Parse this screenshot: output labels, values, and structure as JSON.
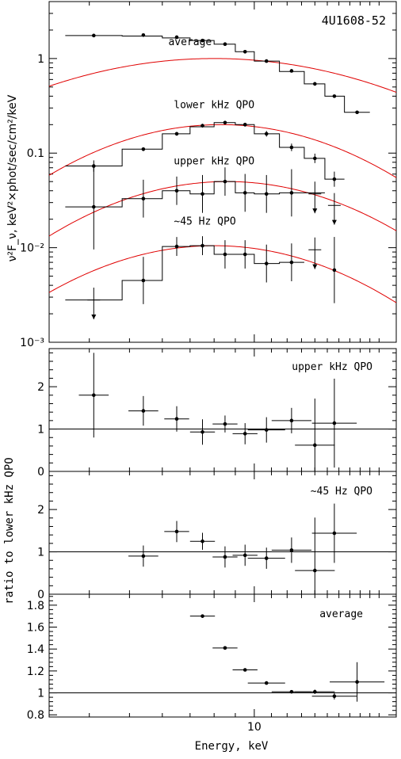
{
  "chart_data": [
    {
      "type": "scatter",
      "panel": "spectrum",
      "title": "4U1608-52",
      "ylabel": "ν²F_ν, keV²×phot/sec/cm²/keV",
      "yscale": "log",
      "xscale": "log",
      "xlim": [
        3.2,
        22
      ],
      "ylim": [
        0.001,
        4
      ],
      "ytick_labels": [
        {
          "v": 1,
          "label": "1"
        },
        {
          "v": 0.1,
          "label": "0.1"
        },
        {
          "v": 0.01,
          "label": "10⁻²"
        },
        {
          "v": 0.001,
          "label": "10⁻³"
        }
      ],
      "series": [
        {
          "name": "average",
          "label_at": [
            7.0,
            1.38
          ],
          "bins": [
            [
              3.5,
              4.8,
              1.75
            ],
            [
              4.8,
              6.0,
              1.73
            ],
            [
              6.0,
              7.0,
              1.65
            ],
            [
              7.0,
              8.0,
              1.55
            ],
            [
              8.0,
              9.0,
              1.42
            ],
            [
              9.0,
              10.0,
              1.18
            ],
            [
              10.0,
              11.5,
              0.94
            ],
            [
              11.5,
              13.2,
              0.73
            ],
            [
              13.2,
              14.8,
              0.54
            ],
            [
              14.8,
              16.5,
              0.4
            ],
            [
              16.5,
              19.0,
              0.27
            ]
          ],
          "points": [
            [
              4.1,
              1.75,
              0,
              false
            ],
            [
              5.4,
              1.77,
              0,
              false
            ],
            [
              6.5,
              1.68,
              0,
              false
            ],
            [
              7.5,
              1.55,
              0,
              false
            ],
            [
              8.5,
              1.42,
              0,
              false
            ],
            [
              9.5,
              1.18,
              0,
              false
            ],
            [
              10.7,
              0.94,
              0,
              false
            ],
            [
              12.3,
              0.74,
              0,
              false
            ],
            [
              14.0,
              0.54,
              0,
              false
            ],
            [
              15.6,
              0.4,
              0,
              false
            ],
            [
              17.7,
              0.27,
              0,
              false
            ]
          ],
          "model": {
            "peak_x": 8.0,
            "peak_y": 1.0,
            "width": 0.52
          }
        },
        {
          "name": "lower kHz QPO",
          "label_at": [
            8.0,
            0.3
          ],
          "bins": [
            [
              3.5,
              4.8,
              0.073
            ],
            [
              4.8,
              6.0,
              0.11
            ],
            [
              6.0,
              7.0,
              0.16
            ],
            [
              7.0,
              8.0,
              0.19
            ],
            [
              8.0,
              9.0,
              0.21
            ],
            [
              9.0,
              10.0,
              0.2
            ],
            [
              10.0,
              11.5,
              0.16
            ],
            [
              11.5,
              13.2,
              0.115
            ],
            [
              13.2,
              14.8,
              0.088
            ],
            [
              14.8,
              16.5,
              0.053
            ]
          ],
          "points": [
            [
              4.1,
              0.073,
              0.06,
              false
            ],
            [
              5.4,
              0.11,
              0.02,
              false
            ],
            [
              6.5,
              0.16,
              0.02,
              false
            ],
            [
              7.5,
              0.195,
              0.02,
              false
            ],
            [
              8.5,
              0.21,
              0.02,
              false
            ],
            [
              9.5,
              0.2,
              0.02,
              false
            ],
            [
              10.7,
              0.16,
              0.03,
              false
            ],
            [
              12.3,
              0.115,
              0.04,
              false
            ],
            [
              14.0,
              0.088,
              0.05,
              false
            ],
            [
              15.6,
              0.053,
              0.08,
              false
            ]
          ],
          "model": {
            "peak_x": 8.3,
            "peak_y": 0.2,
            "width": 0.4
          }
        },
        {
          "name": "upper kHz QPO",
          "label_at": [
            8.0,
            0.076
          ],
          "bins": [
            [
              3.5,
              4.8,
              0.027
            ],
            [
              4.8,
              6.0,
              0.033
            ],
            [
              6.0,
              7.0,
              0.04
            ],
            [
              7.0,
              8.0,
              0.037
            ],
            [
              8.0,
              9.0,
              0.05
            ],
            [
              9.0,
              10.0,
              0.038
            ],
            [
              10.0,
              11.5,
              0.037
            ],
            [
              11.5,
              13.2,
              0.038
            ],
            [
              13.2,
              14.8,
              0.038
            ]
          ],
          "points": [
            [
              4.1,
              0.027,
              0.45,
              false
            ],
            [
              5.4,
              0.033,
              0.2,
              false
            ],
            [
              6.5,
              0.04,
              0.15,
              false
            ],
            [
              7.5,
              0.037,
              0.2,
              false
            ],
            [
              8.5,
              0.05,
              0.15,
              false
            ],
            [
              9.5,
              0.038,
              0.2,
              false
            ],
            [
              10.7,
              0.037,
              0.2,
              false
            ],
            [
              12.3,
              0.038,
              0.25,
              false
            ],
            [
              14.0,
              0.037,
              0,
              true
            ],
            [
              15.6,
              0.028,
              0,
              true
            ]
          ],
          "model": {
            "peak_x": 8.6,
            "peak_y": 0.05,
            "width": 0.4
          }
        },
        {
          "name": "~45 Hz QPO",
          "label_at": [
            7.6,
            0.0175
          ],
          "bins": [
            [
              3.5,
              4.8,
              0.0028
            ],
            [
              4.8,
              6.0,
              0.0045
            ],
            [
              6.0,
              7.0,
              0.0103
            ],
            [
              7.0,
              8.0,
              0.0105
            ],
            [
              8.0,
              9.0,
              0.0085
            ],
            [
              9.0,
              10.0,
              0.0085
            ],
            [
              10.0,
              11.5,
              0.0068
            ],
            [
              11.5,
              13.2,
              0.007
            ]
          ],
          "points": [
            [
              4.1,
              0.0028,
              0,
              true
            ],
            [
              5.4,
              0.0045,
              0.25,
              false
            ],
            [
              6.5,
              0.0103,
              0.1,
              false
            ],
            [
              7.5,
              0.0105,
              0.1,
              false
            ],
            [
              8.5,
              0.0085,
              0.15,
              false
            ],
            [
              9.5,
              0.0085,
              0.15,
              false
            ],
            [
              10.7,
              0.0068,
              0.2,
              false
            ],
            [
              12.3,
              0.007,
              0.2,
              false
            ],
            [
              14.0,
              0.0095,
              0,
              true
            ],
            [
              15.6,
              0.0058,
              0.35,
              false
            ]
          ],
          "model": {
            "peak_x": 8.0,
            "peak_y": 0.0105,
            "width": 0.4
          }
        }
      ]
    },
    {
      "type": "scatter",
      "panel": "ratio-upper",
      "label": "upper kHz QPO",
      "xlim": [
        3.2,
        22
      ],
      "ylim": [
        0,
        2.9
      ],
      "yticks": [
        0,
        1,
        2
      ],
      "reference": 1,
      "points": [
        [
          4.1,
          1.8,
          0.6,
          1.0,
          false
        ],
        [
          5.4,
          1.43,
          0.6,
          0.35,
          false
        ],
        [
          6.5,
          1.24,
          0.5,
          0.3,
          false
        ],
        [
          7.5,
          0.93,
          0.5,
          0.3,
          false
        ],
        [
          8.5,
          1.12,
          0.5,
          0.2,
          false
        ],
        [
          9.5,
          0.89,
          0.5,
          0.25,
          false
        ],
        [
          10.7,
          0.98,
          0.75,
          0.3,
          false
        ],
        [
          12.3,
          1.2,
          0.8,
          0.3,
          false
        ],
        [
          14.0,
          0.62,
          0.8,
          1.1,
          false
        ],
        [
          15.6,
          1.14,
          0.9,
          1.05,
          false
        ]
      ]
    },
    {
      "type": "scatter",
      "panel": "ratio-45hz",
      "label": "~45 Hz QPO",
      "xlim": [
        3.2,
        22
      ],
      "ylim": [
        0,
        2.9
      ],
      "yticks": [
        0,
        1,
        2
      ],
      "reference": 1,
      "points": [
        [
          5.4,
          0.9,
          0.6,
          0.25,
          false
        ],
        [
          6.5,
          1.48,
          0.5,
          0.25,
          false
        ],
        [
          7.5,
          1.25,
          0.5,
          0.2,
          false
        ],
        [
          8.5,
          0.88,
          0.5,
          0.25,
          false
        ],
        [
          9.5,
          0.92,
          0.5,
          0.25,
          false
        ],
        [
          10.7,
          0.85,
          0.75,
          0.25,
          false
        ],
        [
          12.3,
          1.04,
          0.8,
          0.3,
          false
        ],
        [
          14.0,
          0.56,
          0.8,
          1.25,
          false
        ],
        [
          15.6,
          1.44,
          0.9,
          0.7,
          false
        ]
      ]
    },
    {
      "type": "scatter",
      "panel": "ratio-average",
      "label": "average",
      "xlim": [
        3.2,
        22
      ],
      "ylim": [
        0.78,
        1.9
      ],
      "yticks": [
        0.8,
        1,
        1.2,
        1.4,
        1.6,
        1.8
      ],
      "ytick_labels": [
        "0.8",
        "1",
        "1.2",
        "1.4",
        "1.6",
        "1.8"
      ],
      "reference": 1,
      "points": [
        [
          7.5,
          1.7,
          0.5,
          0.015,
          false
        ],
        [
          8.5,
          1.41,
          0.5,
          0.01,
          false
        ],
        [
          9.5,
          1.21,
          0.5,
          0.01,
          false
        ],
        [
          10.7,
          1.09,
          0.75,
          0.01,
          false
        ],
        [
          12.3,
          1.01,
          0.8,
          0.01,
          false
        ],
        [
          14.0,
          1.01,
          0.8,
          0.02,
          false
        ],
        [
          15.6,
          0.97,
          0.9,
          0.03,
          false
        ],
        [
          17.7,
          1.1,
          1.1,
          0.18,
          false
        ]
      ]
    }
  ],
  "ylabel_ratio": "ratio to lower kHz QPO",
  "xlabel": "Energy, keV",
  "xtick_label": "10"
}
